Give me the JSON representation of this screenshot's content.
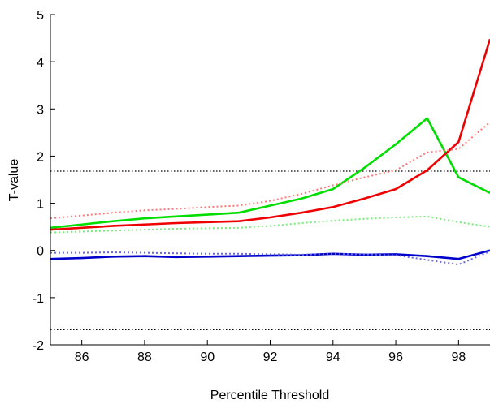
{
  "chart_data": {
    "type": "line",
    "title": "",
    "xlabel": "Percentile Threshold",
    "ylabel": "T-value",
    "xlim": [
      85,
      99
    ],
    "ylim": [
      -2,
      5
    ],
    "xticks": [
      86,
      88,
      90,
      92,
      94,
      96,
      98
    ],
    "yticks": [
      -2,
      -1,
      0,
      1,
      2,
      3,
      4,
      5
    ],
    "xtick_labels": [
      "86",
      "88",
      "90",
      "92",
      "94",
      "96",
      "98"
    ],
    "ytick_labels": [
      "-2",
      "-1",
      "0",
      "1",
      "2",
      "3",
      "4",
      "5"
    ],
    "grid": false,
    "legend": "none",
    "x": [
      85,
      86,
      87,
      88,
      89,
      90,
      91,
      92,
      93,
      94,
      95,
      96,
      97,
      98,
      99
    ],
    "series": [
      {
        "color": "#00dd00",
        "style": "solid",
        "values": [
          0.48,
          0.55,
          0.62,
          0.68,
          0.72,
          0.76,
          0.8,
          0.95,
          1.1,
          1.3,
          1.75,
          2.25,
          2.8,
          1.55,
          1.22
        ]
      },
      {
        "color": "#ee0000",
        "style": "solid",
        "values": [
          0.44,
          0.48,
          0.52,
          0.55,
          0.58,
          0.6,
          0.62,
          0.7,
          0.8,
          0.92,
          1.1,
          1.3,
          1.7,
          2.3,
          4.48
        ]
      },
      {
        "color": "#0000cc",
        "style": "solid",
        "values": [
          -0.18,
          -0.16,
          -0.13,
          -0.12,
          -0.14,
          -0.13,
          -0.12,
          -0.11,
          -0.1,
          -0.07,
          -0.09,
          -0.08,
          -0.12,
          -0.18,
          0.0
        ]
      },
      {
        "color": "#ff7777",
        "style": "dotted",
        "values": [
          0.68,
          0.74,
          0.8,
          0.85,
          0.88,
          0.92,
          0.95,
          1.05,
          1.2,
          1.38,
          1.55,
          1.7,
          2.08,
          2.15,
          2.72
        ]
      },
      {
        "color": "#77ee77",
        "style": "dotted",
        "values": [
          0.38,
          0.4,
          0.42,
          0.44,
          0.46,
          0.47,
          0.48,
          0.52,
          0.58,
          0.63,
          0.67,
          0.7,
          0.72,
          0.6,
          0.5
        ]
      },
      {
        "color": "#6666dd",
        "style": "dotted",
        "values": [
          -0.05,
          -0.05,
          -0.04,
          -0.05,
          -0.06,
          -0.07,
          -0.07,
          -0.08,
          -0.09,
          -0.07,
          -0.08,
          -0.1,
          -0.2,
          -0.3,
          -0.02
        ]
      }
    ],
    "reference_lines": [
      {
        "y": 1.68,
        "color": "#000000",
        "style": "dotted"
      },
      {
        "y": -1.68,
        "color": "#000000",
        "style": "dotted"
      }
    ]
  }
}
